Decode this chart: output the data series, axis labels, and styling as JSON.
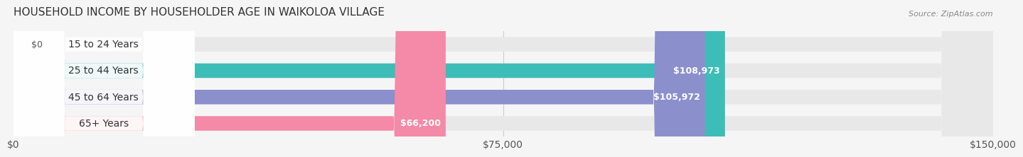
{
  "title": "HOUSEHOLD INCOME BY HOUSEHOLDER AGE IN WAIKOLOA VILLAGE",
  "source": "Source: ZipAtlas.com",
  "categories": [
    "15 to 24 Years",
    "25 to 44 Years",
    "45 to 64 Years",
    "65+ Years"
  ],
  "values": [
    0,
    108973,
    105972,
    66200
  ],
  "bar_colors": [
    "#c9a8d4",
    "#3dbdb8",
    "#8b8fcc",
    "#f589a8"
  ],
  "label_colors": [
    "#555555",
    "#ffffff",
    "#ffffff",
    "#555555"
  ],
  "value_labels": [
    "$0",
    "$108,973",
    "$105,972",
    "$66,200"
  ],
  "xlim": [
    0,
    150000
  ],
  "xticks": [
    0,
    75000,
    150000
  ],
  "xtick_labels": [
    "$0",
    "$75,000",
    "$150,000"
  ],
  "background_color": "#f5f5f5",
  "bar_background_color": "#e8e8e8",
  "title_fontsize": 11,
  "label_fontsize": 10,
  "value_fontsize": 9,
  "source_fontsize": 8,
  "bar_height": 0.55,
  "fig_width": 14.06,
  "fig_height": 2.33
}
